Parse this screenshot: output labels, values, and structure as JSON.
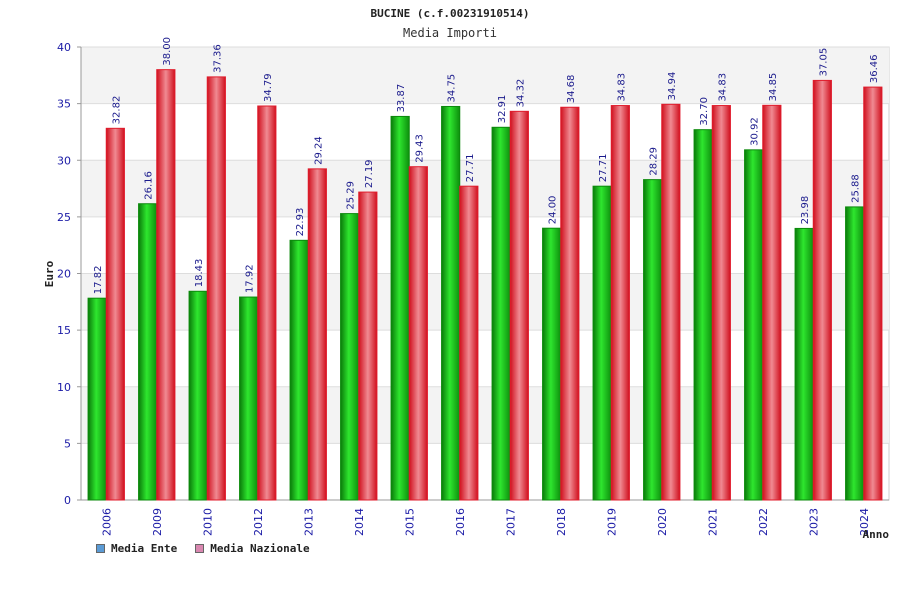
{
  "chart_data": {
    "type": "bar",
    "title": "BUCINE (c.f.00231910514)",
    "subtitle": "Media Importi",
    "ylabel": "Euro",
    "xlabel": "Anno",
    "ylim": [
      0,
      40
    ],
    "yticks": [
      0,
      5,
      10,
      15,
      20,
      25,
      30,
      35,
      40
    ],
    "grid": true,
    "legend_position": "bottom-left",
    "categories": [
      "2006",
      "2009",
      "2010",
      "2012",
      "2013",
      "2014",
      "2015",
      "2016",
      "2017",
      "2018",
      "2019",
      "2020",
      "2021",
      "2022",
      "2023",
      "2024"
    ],
    "series": [
      {
        "name": "Media Ente",
        "legend_color": "#5b9bd5",
        "color": "#19b319",
        "values": [
          17.82,
          26.16,
          18.43,
          17.92,
          22.93,
          25.29,
          33.87,
          34.75,
          32.91,
          24.0,
          27.71,
          28.29,
          32.7,
          30.92,
          23.98,
          25.88
        ],
        "labels": [
          "17.82",
          "26.16",
          "18.43",
          "17.92",
          "22.93",
          "25.29",
          "33.87",
          "34.75",
          "32.91",
          "24.00",
          "27.71",
          "28.29",
          "32.70",
          "30.92",
          "23.98",
          "25.88"
        ]
      },
      {
        "name": "Media Nazionale",
        "legend_color": "#d987b0",
        "color": "#e01b2b",
        "values": [
          32.82,
          38.0,
          37.36,
          34.79,
          29.24,
          27.19,
          29.43,
          27.71,
          34.32,
          34.68,
          34.83,
          34.94,
          34.83,
          34.85,
          37.05,
          36.46
        ],
        "labels": [
          "32.82",
          "38.00",
          "37.36",
          "34.79",
          "29.24",
          "27.19",
          "29.43",
          "27.71",
          "34.32",
          "34.68",
          "34.83",
          "34.94",
          "34.83",
          "34.85",
          "37.05",
          "36.46"
        ]
      }
    ]
  }
}
